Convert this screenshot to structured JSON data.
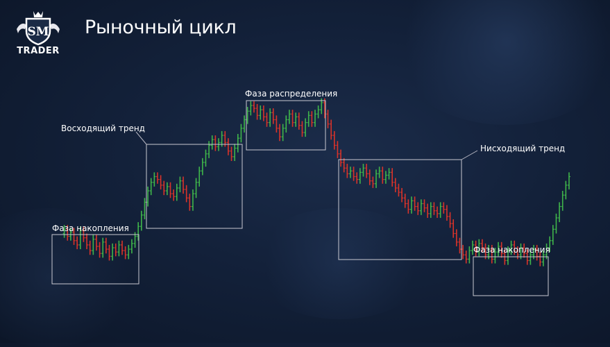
{
  "title": "Рыночный цикл",
  "logo": {
    "monogram": "SM",
    "text": "TRADER",
    "icon": "crowned-shield-bull-bear-icon"
  },
  "colors": {
    "up": "#3fb54a",
    "down": "#d8332a",
    "box": "#c9c9d1",
    "connector": "#b7b7c2"
  },
  "chart_data": {
    "type": "ohlc",
    "title": "Рыночный цикл",
    "xlabel": "",
    "ylabel": "",
    "phases": [
      {
        "id": "accumulation-1",
        "label": "Фаза накопления"
      },
      {
        "id": "uptrend",
        "label": "Восходящий тренд"
      },
      {
        "id": "distribution",
        "label": "Фаза распределения"
      },
      {
        "id": "downtrend",
        "label": "Нисходящий тренд"
      },
      {
        "id": "accumulation-2",
        "label": "Фаза накопления"
      }
    ],
    "closes": [
      30,
      33,
      28,
      31,
      25,
      22,
      32,
      27,
      22,
      18,
      26,
      21,
      16,
      24,
      19,
      14,
      20,
      17,
      22,
      18,
      15,
      19,
      23,
      28,
      35,
      43,
      52,
      60,
      66,
      70,
      68,
      64,
      60,
      63,
      58,
      56,
      62,
      67,
      61,
      55,
      49,
      58,
      66,
      74,
      80,
      86,
      92,
      96,
      91,
      94,
      99,
      94,
      88,
      84,
      90,
      97,
      104,
      110,
      116,
      120,
      118,
      113,
      117,
      112,
      108,
      115,
      110,
      104,
      98,
      104,
      110,
      114,
      108,
      112,
      106,
      101,
      108,
      113,
      108,
      114,
      117,
      122,
      114,
      107,
      99,
      92,
      86,
      80,
      76,
      72,
      74,
      70,
      68,
      73,
      76,
      72,
      67,
      65,
      72,
      74,
      68,
      71,
      73,
      66,
      62,
      59,
      55,
      51,
      47,
      53,
      49,
      46,
      51,
      48,
      44,
      49,
      46,
      44,
      49,
      47,
      42,
      37,
      30,
      24,
      19,
      15,
      12,
      18,
      22,
      17,
      23,
      20,
      15,
      19,
      12,
      17,
      21,
      16,
      11,
      18,
      22,
      18,
      15,
      20,
      16,
      11,
      15,
      19,
      14,
      10,
      15,
      20,
      25,
      33,
      41,
      49,
      57,
      64,
      70
    ]
  }
}
